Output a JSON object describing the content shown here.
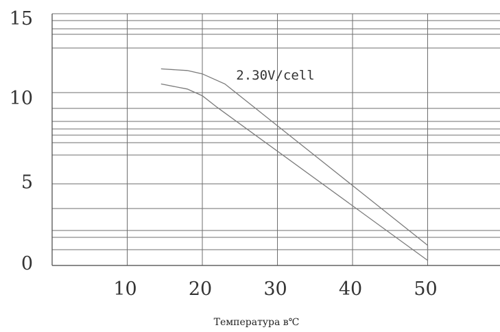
{
  "chart_data": {
    "type": "area",
    "title": "",
    "xlabel": "Температура в℃",
    "ylabel": "",
    "xlim": [
      0,
      60
    ],
    "ylim": [
      0,
      15
    ],
    "x_ticks": [
      "10",
      "20",
      "30",
      "40",
      "50"
    ],
    "y_ticks": [
      "15",
      "10",
      "5",
      "0"
    ],
    "grid": true,
    "legend": "none",
    "series": [
      {
        "role": "upper",
        "points": [
          [
            14.5,
            11.7
          ],
          [
            18,
            11.6
          ],
          [
            20,
            11.4
          ],
          [
            23,
            10.8
          ],
          [
            50,
            1.2
          ]
        ]
      },
      {
        "role": "lower",
        "points": [
          [
            14.5,
            10.8
          ],
          [
            18,
            10.5
          ],
          [
            20,
            10.1
          ],
          [
            22,
            9.4
          ],
          [
            50,
            0.3
          ]
        ]
      }
    ],
    "annotations": [
      {
        "text": "2.30V/cell",
        "x": 24.5,
        "y": 11.3
      }
    ]
  },
  "colors": {
    "grid": "#6e6e6e",
    "curve": "#7a7a7a",
    "text": "#333333"
  }
}
